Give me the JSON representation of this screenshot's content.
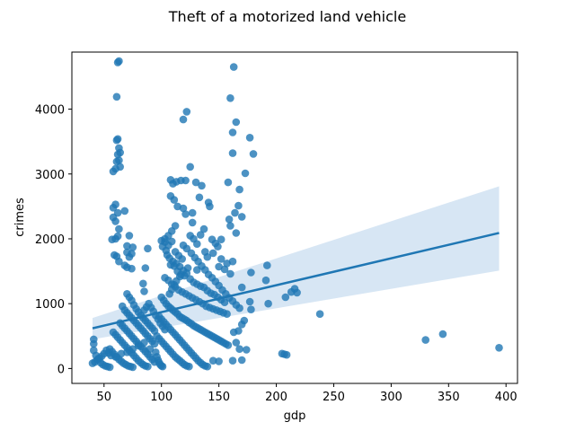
{
  "chart_data": {
    "type": "scatter",
    "title": "Theft of a motorized land vehicle",
    "xlabel": "gdp",
    "ylabel": "crimes",
    "xlim": [
      22,
      410
    ],
    "ylim": [
      -230,
      4880
    ],
    "xticks": [
      50,
      100,
      150,
      200,
      250,
      300,
      350,
      400
    ],
    "yticks": [
      0,
      1000,
      2000,
      3000,
      4000
    ],
    "grid": false,
    "colors": {
      "points": "#1f77b4",
      "line": "#1f77b4",
      "band": "#c6dbef"
    },
    "regression": {
      "x": [
        40,
        394
      ],
      "y": [
        620,
        2090
      ],
      "band_lower": [
        450,
        1510
      ],
      "band_upper": [
        780,
        2810
      ]
    },
    "points": [
      [
        62,
        4720
      ],
      [
        63,
        4740
      ],
      [
        61,
        4190
      ],
      [
        163,
        4650
      ],
      [
        160,
        4170
      ],
      [
        122,
        3960
      ],
      [
        119,
        3840
      ],
      [
        165,
        3800
      ],
      [
        162,
        3640
      ],
      [
        177,
        3560
      ],
      [
        62,
        3540
      ],
      [
        61,
        3520
      ],
      [
        63,
        3400
      ],
      [
        64,
        3330
      ],
      [
        62,
        3300
      ],
      [
        63,
        3210
      ],
      [
        61,
        3190
      ],
      [
        64,
        3110
      ],
      [
        58,
        3040
      ],
      [
        60,
        3080
      ],
      [
        125,
        3110
      ],
      [
        162,
        3320
      ],
      [
        180,
        3310
      ],
      [
        173,
        3010
      ],
      [
        88,
        1850
      ],
      [
        86,
        1550
      ],
      [
        84,
        1310
      ],
      [
        85,
        1190
      ],
      [
        108,
        2910
      ],
      [
        110,
        2850
      ],
      [
        113,
        2880
      ],
      [
        117,
        2900
      ],
      [
        121,
        2900
      ],
      [
        130,
        2870
      ],
      [
        135,
        2820
      ],
      [
        168,
        2760
      ],
      [
        158,
        2870
      ],
      [
        108,
        2660
      ],
      [
        111,
        2600
      ],
      [
        114,
        2500
      ],
      [
        119,
        2470
      ],
      [
        127,
        2400
      ],
      [
        133,
        2640
      ],
      [
        141,
        2560
      ],
      [
        142,
        2500
      ],
      [
        167,
        2510
      ],
      [
        164,
        2400
      ],
      [
        170,
        2340
      ],
      [
        159,
        2300
      ],
      [
        160,
        2200
      ],
      [
        165,
        2090
      ],
      [
        60,
        2530
      ],
      [
        58,
        2480
      ],
      [
        62,
        2400
      ],
      [
        58,
        2330
      ],
      [
        60,
        2270
      ],
      [
        63,
        2150
      ],
      [
        62,
        2040
      ],
      [
        60,
        2000
      ],
      [
        57,
        1990
      ],
      [
        68,
        2430
      ],
      [
        72,
        2050
      ],
      [
        70,
        1890
      ],
      [
        75,
        1870
      ],
      [
        70,
        1790
      ],
      [
        74,
        1770
      ],
      [
        72,
        1720
      ],
      [
        59,
        1750
      ],
      [
        61,
        1730
      ],
      [
        63,
        1650
      ],
      [
        70,
        1560
      ],
      [
        74,
        1540
      ],
      [
        68,
        1590
      ],
      [
        131,
        1520
      ],
      [
        123,
        1550
      ],
      [
        138,
        1800
      ],
      [
        140,
        1720
      ],
      [
        147,
        1930
      ],
      [
        144,
        1990
      ],
      [
        149,
        1880
      ],
      [
        152,
        1990
      ],
      [
        145,
        1780
      ],
      [
        152,
        1690
      ],
      [
        157,
        1620
      ],
      [
        162,
        1650
      ],
      [
        150,
        1570
      ],
      [
        155,
        1530
      ],
      [
        160,
        1460
      ],
      [
        170,
        1250
      ],
      [
        178,
        1480
      ],
      [
        192,
        1590
      ],
      [
        191,
        1360
      ],
      [
        193,
        1000
      ],
      [
        208,
        1100
      ],
      [
        213,
        1180
      ],
      [
        216,
        1230
      ],
      [
        218,
        1170
      ],
      [
        238,
        840
      ],
      [
        177,
        1030
      ],
      [
        172,
        740
      ],
      [
        170,
        680
      ],
      [
        167,
        580
      ],
      [
        163,
        560
      ],
      [
        165,
        400
      ],
      [
        168,
        300
      ],
      [
        174,
        290
      ],
      [
        178,
        910
      ],
      [
        205,
        230
      ],
      [
        207,
        220
      ],
      [
        209,
        210
      ],
      [
        330,
        440
      ],
      [
        345,
        530
      ],
      [
        394,
        320
      ],
      [
        170,
        130
      ],
      [
        162,
        120
      ],
      [
        150,
        110
      ],
      [
        145,
        120
      ],
      [
        100,
        1970
      ],
      [
        103,
        1950
      ],
      [
        106,
        1900
      ],
      [
        109,
        1960
      ],
      [
        112,
        1800
      ],
      [
        115,
        1740
      ],
      [
        118,
        1690
      ],
      [
        105,
        1750
      ],
      [
        108,
        1600
      ],
      [
        111,
        1580
      ],
      [
        114,
        1500
      ],
      [
        117,
        1450
      ],
      [
        120,
        1430
      ],
      [
        125,
        1380
      ],
      [
        128,
        1330
      ],
      [
        131,
        1300
      ],
      [
        134,
        1270
      ],
      [
        137,
        1250
      ],
      [
        140,
        1200
      ],
      [
        143,
        1160
      ],
      [
        146,
        1140
      ],
      [
        149,
        1100
      ],
      [
        152,
        1060
      ],
      [
        155,
        1020
      ],
      [
        103,
        1400
      ],
      [
        106,
        1360
      ],
      [
        109,
        1300
      ],
      [
        112,
        1260
      ],
      [
        115,
        1210
      ],
      [
        118,
        1180
      ],
      [
        121,
        1150
      ],
      [
        124,
        1120
      ],
      [
        127,
        1090
      ],
      [
        130,
        1060
      ],
      [
        133,
        1030
      ],
      [
        136,
        1000
      ],
      [
        139,
        960
      ],
      [
        142,
        940
      ],
      [
        145,
        920
      ],
      [
        148,
        900
      ],
      [
        151,
        880
      ],
      [
        154,
        860
      ],
      [
        157,
        840
      ],
      [
        100,
        1100
      ],
      [
        102,
        1050
      ],
      [
        104,
        1000
      ],
      [
        106,
        960
      ],
      [
        108,
        930
      ],
      [
        110,
        900
      ],
      [
        112,
        870
      ],
      [
        114,
        840
      ],
      [
        116,
        800
      ],
      [
        118,
        780
      ],
      [
        120,
        760
      ],
      [
        122,
        740
      ],
      [
        124,
        710
      ],
      [
        126,
        690
      ],
      [
        128,
        660
      ],
      [
        130,
        640
      ],
      [
        132,
        620
      ],
      [
        134,
        600
      ],
      [
        136,
        580
      ],
      [
        138,
        560
      ],
      [
        140,
        540
      ],
      [
        142,
        520
      ],
      [
        144,
        500
      ],
      [
        146,
        480
      ],
      [
        148,
        460
      ],
      [
        150,
        440
      ],
      [
        152,
        420
      ],
      [
        154,
        400
      ],
      [
        156,
        380
      ],
      [
        158,
        360
      ],
      [
        98,
        800
      ],
      [
        100,
        760
      ],
      [
        102,
        720
      ],
      [
        104,
        680
      ],
      [
        106,
        640
      ],
      [
        108,
        600
      ],
      [
        110,
        560
      ],
      [
        112,
        520
      ],
      [
        114,
        480
      ],
      [
        116,
        440
      ],
      [
        118,
        400
      ],
      [
        120,
        360
      ],
      [
        122,
        320
      ],
      [
        124,
        280
      ],
      [
        126,
        240
      ],
      [
        128,
        200
      ],
      [
        130,
        160
      ],
      [
        132,
        120
      ],
      [
        134,
        90
      ],
      [
        136,
        60
      ],
      [
        138,
        40
      ],
      [
        140,
        30
      ],
      [
        96,
        500
      ],
      [
        98,
        460
      ],
      [
        100,
        420
      ],
      [
        102,
        380
      ],
      [
        104,
        340
      ],
      [
        106,
        300
      ],
      [
        108,
        260
      ],
      [
        110,
        220
      ],
      [
        112,
        180
      ],
      [
        114,
        150
      ],
      [
        116,
        120
      ],
      [
        118,
        90
      ],
      [
        120,
        60
      ],
      [
        122,
        40
      ],
      [
        124,
        30
      ],
      [
        70,
        1150
      ],
      [
        72,
        1100
      ],
      [
        74,
        1050
      ],
      [
        76,
        980
      ],
      [
        78,
        920
      ],
      [
        80,
        870
      ],
      [
        82,
        820
      ],
      [
        84,
        780
      ],
      [
        86,
        740
      ],
      [
        88,
        700
      ],
      [
        90,
        660
      ],
      [
        92,
        620
      ],
      [
        94,
        580
      ],
      [
        66,
        960
      ],
      [
        68,
        900
      ],
      [
        70,
        860
      ],
      [
        72,
        820
      ],
      [
        74,
        780
      ],
      [
        76,
        740
      ],
      [
        78,
        700
      ],
      [
        80,
        660
      ],
      [
        82,
        620
      ],
      [
        84,
        580
      ],
      [
        86,
        540
      ],
      [
        88,
        500
      ],
      [
        90,
        460
      ],
      [
        92,
        420
      ],
      [
        94,
        380
      ],
      [
        64,
        700
      ],
      [
        66,
        660
      ],
      [
        68,
        620
      ],
      [
        70,
        580
      ],
      [
        72,
        540
      ],
      [
        74,
        500
      ],
      [
        76,
        460
      ],
      [
        78,
        420
      ],
      [
        80,
        380
      ],
      [
        82,
        340
      ],
      [
        84,
        300
      ],
      [
        86,
        260
      ],
      [
        88,
        220
      ],
      [
        90,
        180
      ],
      [
        92,
        140
      ],
      [
        94,
        100
      ],
      [
        58,
        560
      ],
      [
        60,
        520
      ],
      [
        62,
        480
      ],
      [
        64,
        440
      ],
      [
        66,
        400
      ],
      [
        68,
        360
      ],
      [
        70,
        320
      ],
      [
        72,
        280
      ],
      [
        74,
        240
      ],
      [
        76,
        200
      ],
      [
        78,
        160
      ],
      [
        80,
        120
      ],
      [
        82,
        90
      ],
      [
        84,
        60
      ],
      [
        86,
        40
      ],
      [
        88,
        30
      ],
      [
        55,
        300
      ],
      [
        57,
        260
      ],
      [
        59,
        220
      ],
      [
        61,
        180
      ],
      [
        63,
        140
      ],
      [
        65,
        110
      ],
      [
        67,
        80
      ],
      [
        69,
        60
      ],
      [
        71,
        40
      ],
      [
        73,
        30
      ],
      [
        75,
        20
      ],
      [
        52,
        280
      ],
      [
        54,
        240
      ],
      [
        56,
        200
      ],
      [
        50,
        230
      ],
      [
        48,
        190
      ],
      [
        46,
        160
      ],
      [
        44,
        130
      ],
      [
        42,
        100
      ],
      [
        40,
        80
      ],
      [
        41,
        450
      ],
      [
        41,
        380
      ],
      [
        41,
        280
      ],
      [
        43,
        200
      ],
      [
        45,
        150
      ],
      [
        47,
        90
      ],
      [
        49,
        60
      ],
      [
        51,
        40
      ],
      [
        53,
        30
      ],
      [
        55,
        20
      ],
      [
        60,
        180
      ],
      [
        65,
        230
      ],
      [
        70,
        250
      ],
      [
        75,
        300
      ],
      [
        80,
        350
      ],
      [
        85,
        400
      ],
      [
        90,
        300
      ],
      [
        95,
        250
      ],
      [
        96,
        180
      ],
      [
        97,
        130
      ],
      [
        98,
        90
      ],
      [
        99,
        60
      ],
      [
        100,
        40
      ],
      [
        101,
        30
      ],
      [
        85,
        900
      ],
      [
        87,
        950
      ],
      [
        89,
        1000
      ],
      [
        91,
        940
      ],
      [
        93,
        880
      ],
      [
        95,
        820
      ],
      [
        97,
        760
      ],
      [
        99,
        700
      ],
      [
        101,
        650
      ],
      [
        103,
        600
      ],
      [
        107,
        1150
      ],
      [
        109,
        1220
      ],
      [
        111,
        1290
      ],
      [
        113,
        1350
      ],
      [
        116,
        1420
      ],
      [
        119,
        1900
      ],
      [
        122,
        1850
      ],
      [
        126,
        1780
      ],
      [
        129,
        1710
      ],
      [
        132,
        1650
      ],
      [
        135,
        1580
      ],
      [
        138,
        1520
      ],
      [
        141,
        1450
      ],
      [
        144,
        1400
      ],
      [
        147,
        1340
      ],
      [
        150,
        1280
      ],
      [
        153,
        1210
      ],
      [
        156,
        1150
      ],
      [
        159,
        1090
      ],
      [
        162,
        1040
      ],
      [
        165,
        980
      ],
      [
        168,
        930
      ],
      [
        125,
        2050
      ],
      [
        128,
        2000
      ],
      [
        131,
        1920
      ],
      [
        134,
        2060
      ],
      [
        137,
        2150
      ],
      [
        127,
        2250
      ],
      [
        121,
        2380
      ],
      [
        112,
        2200
      ],
      [
        109,
        2120
      ],
      [
        106,
        2050
      ],
      [
        103,
        2000
      ],
      [
        101,
        1880
      ],
      [
        104,
        1820
      ],
      [
        107,
        1700
      ],
      [
        110,
        1650
      ],
      [
        113,
        1620
      ],
      [
        116,
        1570
      ],
      [
        119,
        1510
      ],
      [
        122,
        1470
      ]
    ]
  }
}
